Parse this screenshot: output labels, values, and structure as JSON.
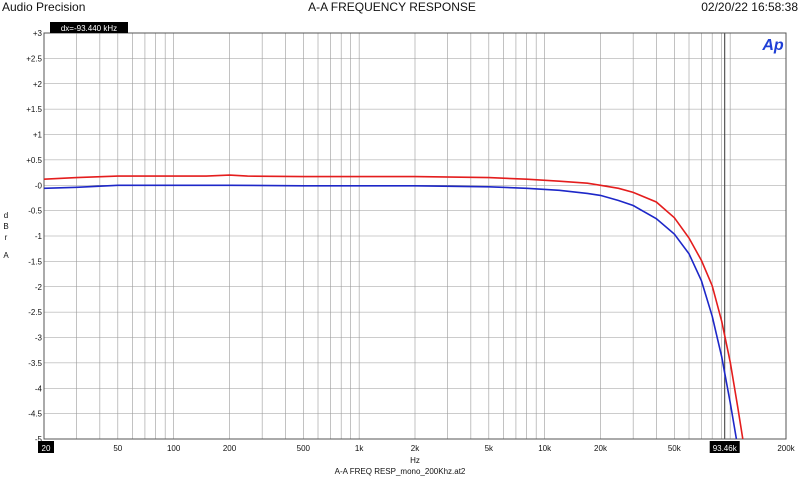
{
  "header": {
    "app_name": "Audio Precision",
    "title": "A-A FREQUENCY RESPONSE",
    "timestamp": "02/20/22 16:58:38"
  },
  "logo_text": "Ap",
  "cursor_readout": "dx=-93.440 kHz",
  "footer_filename": "A-A FREQ RESP_mono_200Khz.at2",
  "colors": {
    "accent_logo": "#1f3fd6",
    "series_red": "#e41d1d",
    "series_blue": "#1d27c8"
  },
  "chart_data": {
    "type": "line",
    "title": "A-A FREQUENCY RESPONSE",
    "xlabel": "Hz",
    "ylabel_letters": [
      "d",
      "B",
      "r",
      "A"
    ],
    "xscale": "log",
    "xlim": [
      20,
      200000
    ],
    "ylim": [
      -5,
      3
    ],
    "grid": true,
    "x_tick_labels": [
      {
        "v": 50,
        "t": "50"
      },
      {
        "v": 100,
        "t": "100"
      },
      {
        "v": 200,
        "t": "200"
      },
      {
        "v": 500,
        "t": "500"
      },
      {
        "v": 1000,
        "t": "1k"
      },
      {
        "v": 2000,
        "t": "2k"
      },
      {
        "v": 5000,
        "t": "5k"
      },
      {
        "v": 10000,
        "t": "10k"
      },
      {
        "v": 20000,
        "t": "20k"
      },
      {
        "v": 50000,
        "t": "50k"
      },
      {
        "v": 200000,
        "t": "200k"
      }
    ],
    "x_cursor_left": {
      "v": 20,
      "t": "20"
    },
    "x_cursor_right": {
      "v": 93460,
      "t": "93.46k"
    },
    "y_tick_labels": [
      {
        "v": 3,
        "t": "+3"
      },
      {
        "v": 2.5,
        "t": "+2.5"
      },
      {
        "v": 2,
        "t": "+2"
      },
      {
        "v": 1.5,
        "t": "+1.5"
      },
      {
        "v": 1,
        "t": "+1"
      },
      {
        "v": 0.5,
        "t": "+0.5"
      },
      {
        "v": 0,
        "t": "-0"
      },
      {
        "v": -0.5,
        "t": "-0.5"
      },
      {
        "v": -1,
        "t": "-1"
      },
      {
        "v": -1.5,
        "t": "-1.5"
      },
      {
        "v": -2,
        "t": "-2"
      },
      {
        "v": -2.5,
        "t": "-2.5"
      },
      {
        "v": -3,
        "t": "-3"
      },
      {
        "v": -3.5,
        "t": "-3.5"
      },
      {
        "v": -4,
        "t": "-4"
      },
      {
        "v": -4.5,
        "t": "-4.5"
      },
      {
        "v": -5,
        "t": "-5"
      }
    ],
    "series": [
      {
        "color": "#e41d1d",
        "points": [
          [
            20,
            0.12
          ],
          [
            30,
            0.15
          ],
          [
            50,
            0.18
          ],
          [
            100,
            0.18
          ],
          [
            150,
            0.18
          ],
          [
            200,
            0.2
          ],
          [
            250,
            0.18
          ],
          [
            500,
            0.17
          ],
          [
            1000,
            0.17
          ],
          [
            2000,
            0.17
          ],
          [
            5000,
            0.15
          ],
          [
            8000,
            0.12
          ],
          [
            12000,
            0.08
          ],
          [
            17000,
            0.04
          ],
          [
            20000,
            0.0
          ],
          [
            25000,
            -0.06
          ],
          [
            30000,
            -0.14
          ],
          [
            40000,
            -0.33
          ],
          [
            50000,
            -0.64
          ],
          [
            60000,
            -1.04
          ],
          [
            70000,
            -1.48
          ],
          [
            80000,
            -1.98
          ],
          [
            90000,
            -2.68
          ],
          [
            100000,
            -3.48
          ],
          [
            110000,
            -4.38
          ],
          [
            117000,
            -5.0
          ]
        ]
      },
      {
        "color": "#1d27c8",
        "points": [
          [
            20,
            -0.06
          ],
          [
            30,
            -0.04
          ],
          [
            50,
            0.0
          ],
          [
            100,
            0.0
          ],
          [
            200,
            0.0
          ],
          [
            500,
            -0.01
          ],
          [
            1000,
            -0.01
          ],
          [
            2000,
            -0.01
          ],
          [
            5000,
            -0.03
          ],
          [
            8000,
            -0.06
          ],
          [
            12000,
            -0.1
          ],
          [
            17000,
            -0.16
          ],
          [
            20000,
            -0.2
          ],
          [
            25000,
            -0.3
          ],
          [
            30000,
            -0.4
          ],
          [
            40000,
            -0.66
          ],
          [
            50000,
            -0.96
          ],
          [
            60000,
            -1.35
          ],
          [
            70000,
            -1.88
          ],
          [
            80000,
            -2.58
          ],
          [
            90000,
            -3.38
          ],
          [
            100000,
            -4.28
          ],
          [
            108000,
            -5.0
          ]
        ]
      }
    ]
  }
}
